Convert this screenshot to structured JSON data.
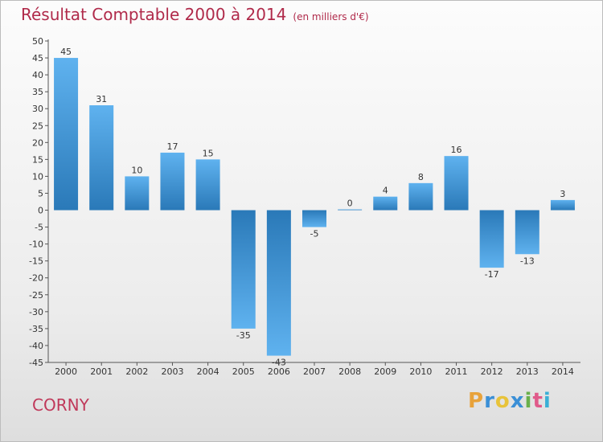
{
  "header": {
    "title": "Résultat Comptable 2000 à 2014",
    "unit": "(en milliers d'€)"
  },
  "footer": {
    "commune": "CORNY",
    "logo_letters": [
      "P",
      "r",
      "o",
      "x",
      "i",
      "t",
      "i"
    ]
  },
  "colors": {
    "title": "#b02a4a",
    "bar_dark": "#2a79b8",
    "bar_light": "#5fb2ef",
    "logo": [
      "#e8a23a",
      "#3a8fd6",
      "#e8c33a",
      "#3a8fd6",
      "#6ab04c",
      "#e05a8a",
      "#3ab0d6"
    ]
  },
  "chart_data": {
    "type": "bar",
    "categories": [
      "2000",
      "2001",
      "2002",
      "2003",
      "2004",
      "2005",
      "2006",
      "2007",
      "2008",
      "2009",
      "2010",
      "2011",
      "2012",
      "2013",
      "2014"
    ],
    "values": [
      45,
      31,
      10,
      17,
      15,
      -35,
      -43,
      -5,
      0,
      4,
      8,
      16,
      -17,
      -13,
      3
    ],
    "data_labels": [
      "45",
      "31",
      "10",
      "17",
      "15",
      "-35",
      "-43",
      "-5",
      "0",
      "4",
      "8",
      "16",
      "-17",
      "-13",
      "3"
    ],
    "ylim": [
      -45,
      50
    ],
    "yticks": [
      50,
      45,
      40,
      35,
      30,
      25,
      20,
      15,
      10,
      5,
      0,
      -5,
      -10,
      -15,
      -20,
      -25,
      -30,
      -35,
      -40,
      -45
    ],
    "grid": false,
    "legend": "none"
  }
}
